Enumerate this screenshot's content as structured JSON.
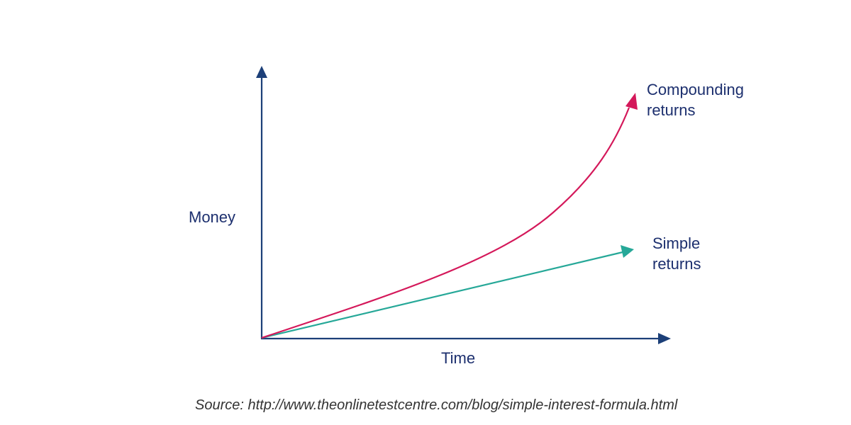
{
  "labels": {
    "y_axis": "Money",
    "x_axis": "Time",
    "compounding": [
      "Compounding",
      "returns"
    ],
    "simple": [
      "Simple",
      "returns"
    ]
  },
  "source": "Source: http://www.theonlinetestcentre.com/blog/simple-interest-formula.html",
  "colors": {
    "axis": "#1c3f78",
    "text": "#1c2f6e",
    "compounding": "#d4185a",
    "simple": "#26a898",
    "source": "#333333"
  }
}
